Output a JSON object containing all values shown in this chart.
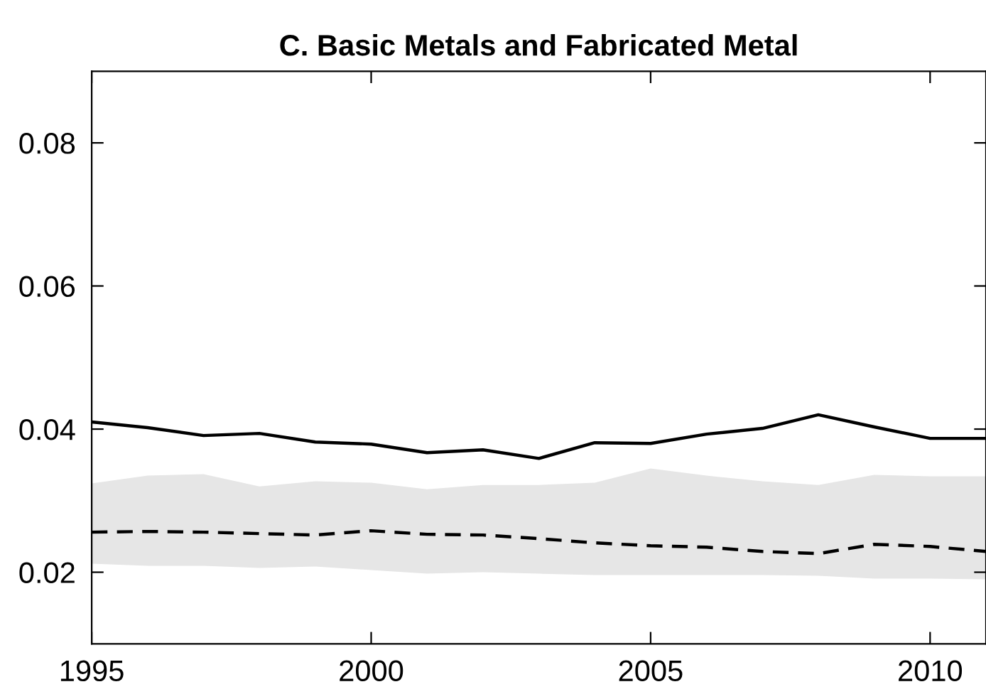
{
  "chart_data": {
    "type": "line",
    "title": "C. Basic Metals and Fabricated Metal",
    "x": [
      1995,
      1996,
      1997,
      1998,
      1999,
      2000,
      2001,
      2002,
      2003,
      2004,
      2005,
      2006,
      2007,
      2008,
      2009,
      2010,
      2011
    ],
    "series": [
      {
        "color": "#000000",
        "line_style": "solid",
        "values": [
          0.041,
          0.0402,
          0.0391,
          0.0394,
          0.0382,
          0.0379,
          0.0367,
          0.0371,
          0.0359,
          0.0381,
          0.038,
          0.0393,
          0.0401,
          0.042,
          0.0403,
          0.0387,
          0.0387
        ]
      },
      {
        "color": "#000000",
        "line_style": "dashed",
        "values": [
          0.0256,
          0.0257,
          0.0256,
          0.0254,
          0.0252,
          0.0258,
          0.0253,
          0.0252,
          0.0247,
          0.0241,
          0.0237,
          0.0235,
          0.0229,
          0.0226,
          0.0239,
          0.0236,
          0.0229
        ],
        "lower": [
          0.0212,
          0.0209,
          0.0209,
          0.0206,
          0.0208,
          0.0203,
          0.0198,
          0.02,
          0.0198,
          0.0196,
          0.0196,
          0.0196,
          0.0196,
          0.0195,
          0.0191,
          0.0191,
          0.019
        ],
        "upper": [
          0.0324,
          0.0335,
          0.0337,
          0.032,
          0.0327,
          0.0325,
          0.0316,
          0.0322,
          0.0322,
          0.0325,
          0.0345,
          0.0335,
          0.0327,
          0.0322,
          0.0336,
          0.0334,
          0.0334
        ]
      }
    ],
    "xlim": [
      1995,
      2011
    ],
    "xticks": [
      1995,
      2000,
      2005,
      2010
    ],
    "ylim": [
      0.01,
      0.09
    ],
    "yticks": [
      {
        "value": 0.02,
        "label": "0.02"
      },
      {
        "value": 0.04,
        "label": "0.04"
      },
      {
        "value": 0.06,
        "label": "0.06"
      },
      {
        "value": 0.08,
        "label": "0.08"
      }
    ],
    "grid": false,
    "legend": false
  }
}
